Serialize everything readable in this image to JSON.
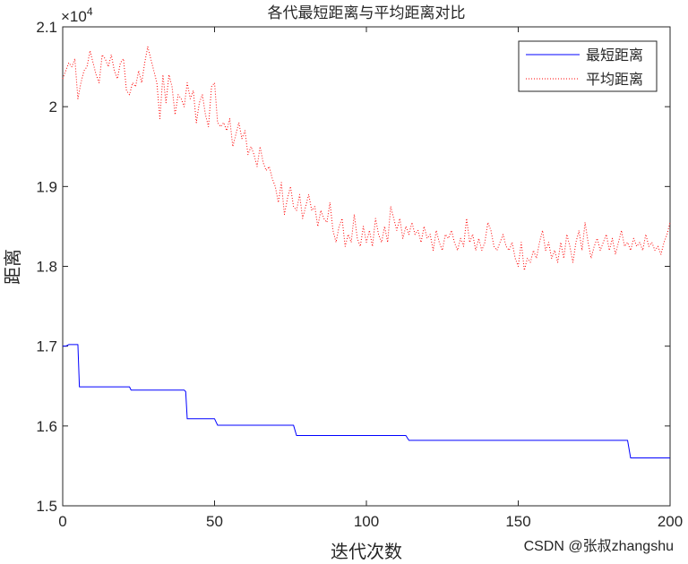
{
  "chart_data": {
    "type": "line",
    "title": "各代最短距离与平均距离对比",
    "xlabel": "迭代次数",
    "ylabel": "距离",
    "y_exponent": "×10",
    "y_exponent_power": "4",
    "xlim": [
      0,
      200
    ],
    "ylim": [
      15000,
      21000
    ],
    "x_ticks": [
      "0",
      "50",
      "100",
      "150",
      "200"
    ],
    "y_ticks": [
      "1.5",
      "1.6",
      "1.7",
      "1.8",
      "1.9",
      "2",
      "2.1"
    ],
    "x_tick_values": [
      0,
      50,
      100,
      150,
      200
    ],
    "y_tick_values": [
      15000,
      16000,
      17000,
      18000,
      19000,
      20000,
      21000
    ],
    "grid": false,
    "legend_position": "top-right",
    "series": [
      {
        "name": "最短距离",
        "color": "#0000ff",
        "style": "solid",
        "points": [
          [
            0,
            17000
          ],
          [
            1,
            17000
          ],
          [
            2,
            17020
          ],
          [
            5,
            17020
          ],
          [
            5.5,
            16490
          ],
          [
            22,
            16490
          ],
          [
            22.5,
            16450
          ],
          [
            40,
            16450
          ],
          [
            40.5,
            16430
          ],
          [
            41,
            16090
          ],
          [
            50,
            16090
          ],
          [
            51,
            16010
          ],
          [
            76,
            16010
          ],
          [
            77,
            15880
          ],
          [
            113,
            15880
          ],
          [
            114,
            15820
          ],
          [
            186,
            15820
          ],
          [
            187,
            15600
          ],
          [
            200,
            15600
          ]
        ]
      },
      {
        "name": "平均距离",
        "color": "#ff0000",
        "style": "dotted",
        "points": [
          [
            0,
            20350
          ],
          [
            1,
            20450
          ],
          [
            2,
            20550
          ],
          [
            3,
            20500
          ],
          [
            4,
            20600
          ],
          [
            5,
            20100
          ],
          [
            6,
            20300
          ],
          [
            7,
            20450
          ],
          [
            8,
            20500
          ],
          [
            9,
            20700
          ],
          [
            10,
            20550
          ],
          [
            11,
            20400
          ],
          [
            12,
            20300
          ],
          [
            13,
            20650
          ],
          [
            14,
            20600
          ],
          [
            15,
            20500
          ],
          [
            16,
            20650
          ],
          [
            17,
            20450
          ],
          [
            18,
            20350
          ],
          [
            19,
            20550
          ],
          [
            20,
            20600
          ],
          [
            21,
            20200
          ],
          [
            22,
            20150
          ],
          [
            23,
            20300
          ],
          [
            24,
            20250
          ],
          [
            25,
            20450
          ],
          [
            26,
            20300
          ],
          [
            27,
            20550
          ],
          [
            28,
            20750
          ],
          [
            29,
            20600
          ],
          [
            30,
            20450
          ],
          [
            31,
            20300
          ],
          [
            32,
            19850
          ],
          [
            33,
            20400
          ],
          [
            34,
            20050
          ],
          [
            35,
            20400
          ],
          [
            36,
            20250
          ],
          [
            37,
            19900
          ],
          [
            38,
            20150
          ],
          [
            39,
            20100
          ],
          [
            40,
            20000
          ],
          [
            41,
            20300
          ],
          [
            42,
            20100
          ],
          [
            43,
            20200
          ],
          [
            44,
            19800
          ],
          [
            45,
            20050
          ],
          [
            46,
            20150
          ],
          [
            47,
            19900
          ],
          [
            48,
            19750
          ],
          [
            49,
            20250
          ],
          [
            50,
            20300
          ],
          [
            51,
            19800
          ],
          [
            52,
            19750
          ],
          [
            53,
            19800
          ],
          [
            54,
            19700
          ],
          [
            55,
            19850
          ],
          [
            56,
            19500
          ],
          [
            57,
            19650
          ],
          [
            58,
            19800
          ],
          [
            59,
            19600
          ],
          [
            60,
            19700
          ],
          [
            61,
            19400
          ],
          [
            62,
            19500
          ],
          [
            63,
            19400
          ],
          [
            64,
            19250
          ],
          [
            65,
            19500
          ],
          [
            66,
            19300
          ],
          [
            67,
            19200
          ],
          [
            68,
            19250
          ],
          [
            69,
            19100
          ],
          [
            70,
            19000
          ],
          [
            71,
            18800
          ],
          [
            72,
            19050
          ],
          [
            73,
            18650
          ],
          [
            74,
            18850
          ],
          [
            75,
            19000
          ],
          [
            76,
            18750
          ],
          [
            77,
            18700
          ],
          [
            78,
            18900
          ],
          [
            79,
            18600
          ],
          [
            80,
            18750
          ],
          [
            81,
            18900
          ],
          [
            82,
            18700
          ],
          [
            83,
            18750
          ],
          [
            84,
            18500
          ],
          [
            85,
            18700
          ],
          [
            86,
            18600
          ],
          [
            87,
            18550
          ],
          [
            88,
            18800
          ],
          [
            89,
            18450
          ],
          [
            90,
            18300
          ],
          [
            91,
            18500
          ],
          [
            92,
            18600
          ],
          [
            93,
            18250
          ],
          [
            94,
            18400
          ],
          [
            95,
            18300
          ],
          [
            96,
            18650
          ],
          [
            97,
            18350
          ],
          [
            98,
            18250
          ],
          [
            99,
            18500
          ],
          [
            100,
            18300
          ],
          [
            101,
            18450
          ],
          [
            102,
            18250
          ],
          [
            103,
            18600
          ],
          [
            104,
            18400
          ],
          [
            105,
            18300
          ],
          [
            106,
            18500
          ],
          [
            107,
            18300
          ],
          [
            108,
            18750
          ],
          [
            109,
            18600
          ],
          [
            110,
            18450
          ],
          [
            111,
            18600
          ],
          [
            112,
            18350
          ],
          [
            113,
            18500
          ],
          [
            114,
            18400
          ],
          [
            115,
            18550
          ],
          [
            116,
            18400
          ],
          [
            117,
            18450
          ],
          [
            118,
            18300
          ],
          [
            119,
            18500
          ],
          [
            120,
            18350
          ],
          [
            121,
            18400
          ],
          [
            122,
            18200
          ],
          [
            123,
            18450
          ],
          [
            124,
            18300
          ],
          [
            125,
            18200
          ],
          [
            126,
            18400
          ],
          [
            127,
            18350
          ],
          [
            128,
            18450
          ],
          [
            129,
            18300
          ],
          [
            130,
            18200
          ],
          [
            131,
            18350
          ],
          [
            132,
            18250
          ],
          [
            133,
            18600
          ],
          [
            134,
            18300
          ],
          [
            135,
            18400
          ],
          [
            136,
            18200
          ],
          [
            137,
            18350
          ],
          [
            138,
            18200
          ],
          [
            139,
            18300
          ],
          [
            140,
            18550
          ],
          [
            141,
            18450
          ],
          [
            142,
            18250
          ],
          [
            143,
            18200
          ],
          [
            144,
            18300
          ],
          [
            145,
            18400
          ],
          [
            146,
            18250
          ],
          [
            147,
            18200
          ],
          [
            148,
            18300
          ],
          [
            149,
            18100
          ],
          [
            150,
            18000
          ],
          [
            151,
            18300
          ],
          [
            152,
            17950
          ],
          [
            153,
            18100
          ],
          [
            154,
            18050
          ],
          [
            155,
            18200
          ],
          [
            156,
            18100
          ],
          [
            157,
            18300
          ],
          [
            158,
            18450
          ],
          [
            159,
            18200
          ],
          [
            160,
            18300
          ],
          [
            161,
            18100
          ],
          [
            162,
            18200
          ],
          [
            163,
            18050
          ],
          [
            164,
            18300
          ],
          [
            165,
            18100
          ],
          [
            166,
            18400
          ],
          [
            167,
            18250
          ],
          [
            168,
            18050
          ],
          [
            169,
            18300
          ],
          [
            170,
            18450
          ],
          [
            171,
            18200
          ],
          [
            172,
            18550
          ],
          [
            173,
            18300
          ],
          [
            174,
            18100
          ],
          [
            175,
            18250
          ],
          [
            176,
            18350
          ],
          [
            177,
            18200
          ],
          [
            178,
            18300
          ],
          [
            179,
            18400
          ],
          [
            180,
            18200
          ],
          [
            181,
            18350
          ],
          [
            182,
            18150
          ],
          [
            183,
            18300
          ],
          [
            184,
            18450
          ],
          [
            185,
            18250
          ],
          [
            186,
            18300
          ],
          [
            187,
            18200
          ],
          [
            188,
            18350
          ],
          [
            189,
            18250
          ],
          [
            190,
            18300
          ],
          [
            191,
            18200
          ],
          [
            192,
            18400
          ],
          [
            193,
            18250
          ],
          [
            194,
            18300
          ],
          [
            195,
            18200
          ],
          [
            196,
            18250
          ],
          [
            197,
            18150
          ],
          [
            198,
            18300
          ],
          [
            199,
            18400
          ],
          [
            200,
            18550
          ]
        ]
      }
    ]
  },
  "watermark": "CSDN @张叔zhangshu"
}
